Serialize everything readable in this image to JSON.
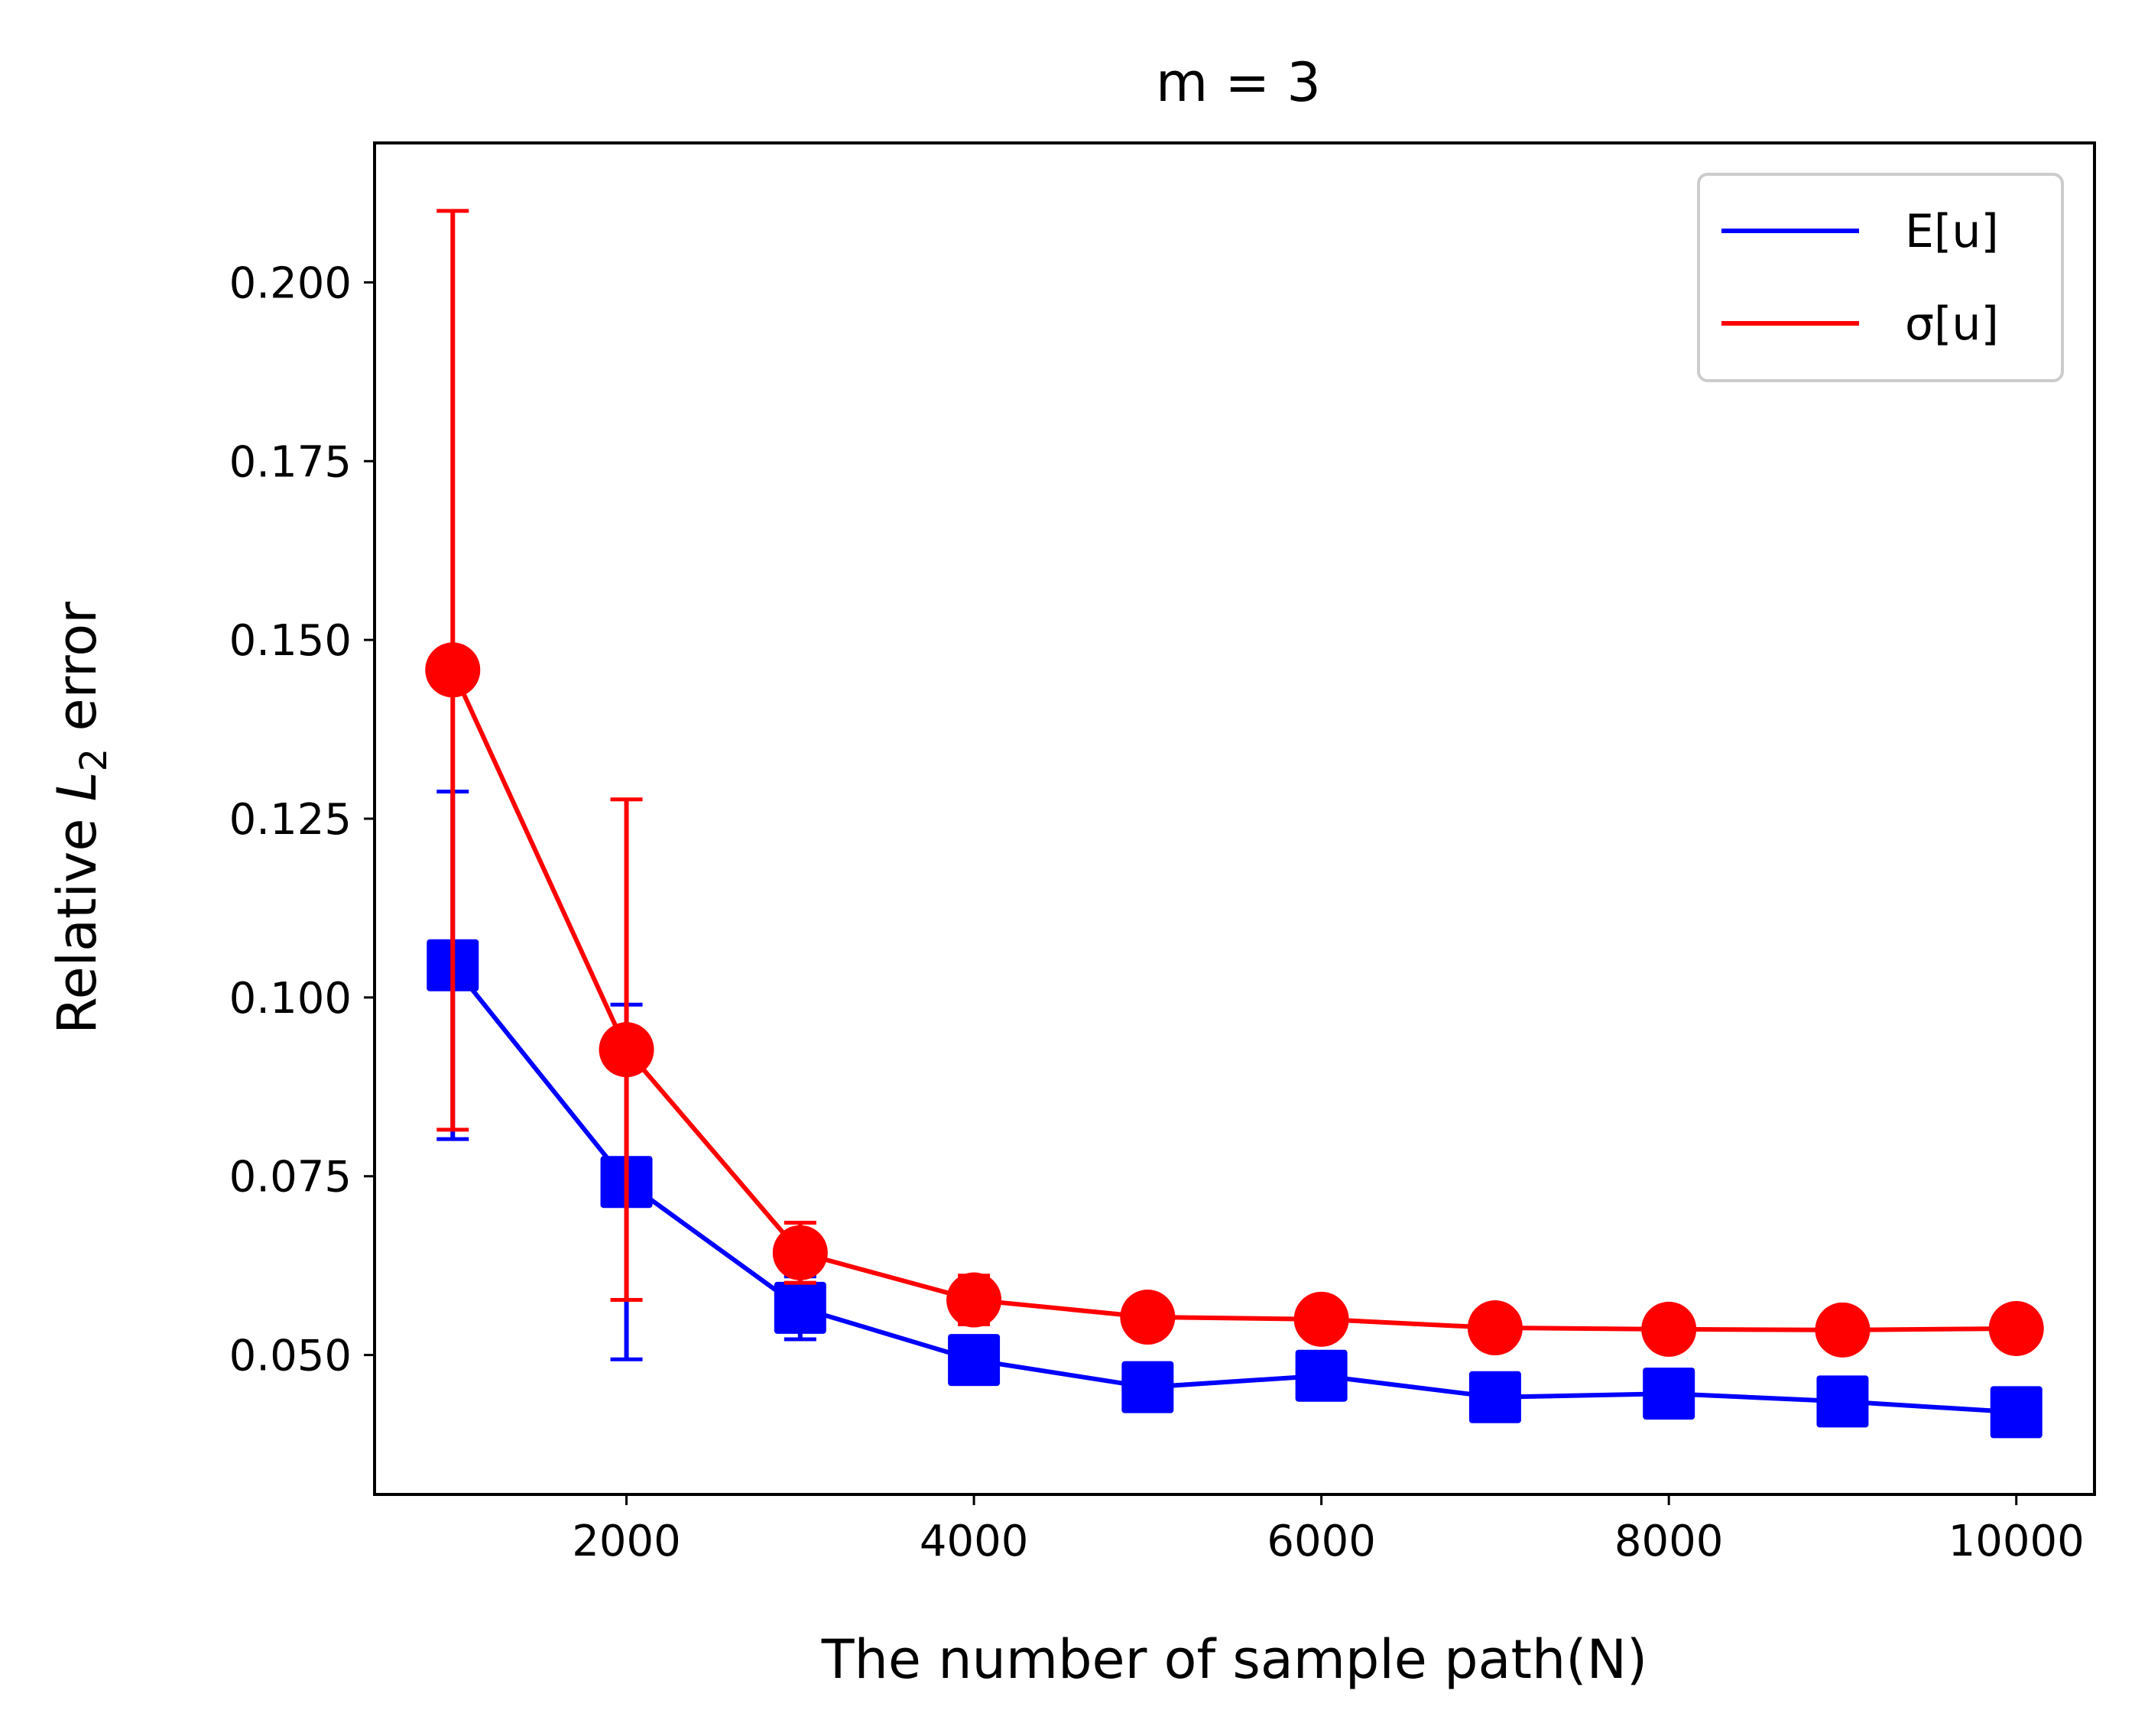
{
  "chart_data": {
    "type": "line",
    "title": "m = 3",
    "xlabel": "The number of sample path(N)",
    "ylabel_prefix": "Relative ",
    "ylabel_math": "L",
    "ylabel_sub": "2",
    "ylabel_suffix": " error",
    "xlim": [
      550,
      10450
    ],
    "ylim": [
      0.0305,
      0.2195
    ],
    "xticks": [
      2000,
      4000,
      6000,
      8000,
      10000
    ],
    "xtick_labels": [
      "2000",
      "4000",
      "6000",
      "8000",
      "10000"
    ],
    "yticks": [
      0.05,
      0.075,
      0.1,
      0.125,
      0.15,
      0.175,
      0.2
    ],
    "ytick_labels": [
      "0.050",
      "0.075",
      "0.100",
      "0.125",
      "0.150",
      "0.175",
      "0.200"
    ],
    "x": [
      1000,
      2000,
      3000,
      4000,
      5000,
      6000,
      7000,
      8000,
      9000,
      10000
    ],
    "legend_position": "top-right",
    "grid": false,
    "series": [
      {
        "name": "E[u]",
        "legend_label": "E[u]",
        "color": "#0000ff",
        "marker": "square",
        "values": [
          0.1045,
          0.0742,
          0.0566,
          0.0493,
          0.0455,
          0.0471,
          0.0441,
          0.0446,
          0.0435,
          0.042
        ],
        "err_low": [
          0.0802,
          0.0494,
          0.0522,
          0.0478,
          0.0442,
          0.0462,
          0.043,
          0.0436,
          0.0425,
          0.041
        ],
        "err_high": [
          0.1288,
          0.099,
          0.061,
          0.0508,
          0.0468,
          0.048,
          0.0452,
          0.0456,
          0.0445,
          0.043
        ]
      },
      {
        "name": "sigma[u]",
        "legend_label": "σ[u]",
        "color": "#ff0000",
        "marker": "circle",
        "values": [
          0.1458,
          0.0927,
          0.0643,
          0.0577,
          0.0553,
          0.055,
          0.0538,
          0.0536,
          0.0535,
          0.0537
        ],
        "err_low": [
          0.0815,
          0.0577,
          0.0601,
          0.0543,
          0.0535,
          0.0528,
          0.0522,
          0.0522,
          0.0517,
          0.0525
        ],
        "err_high": [
          0.21,
          0.1277,
          0.0685,
          0.0611,
          0.0571,
          0.0572,
          0.0554,
          0.055,
          0.0553,
          0.0549
        ]
      }
    ]
  }
}
